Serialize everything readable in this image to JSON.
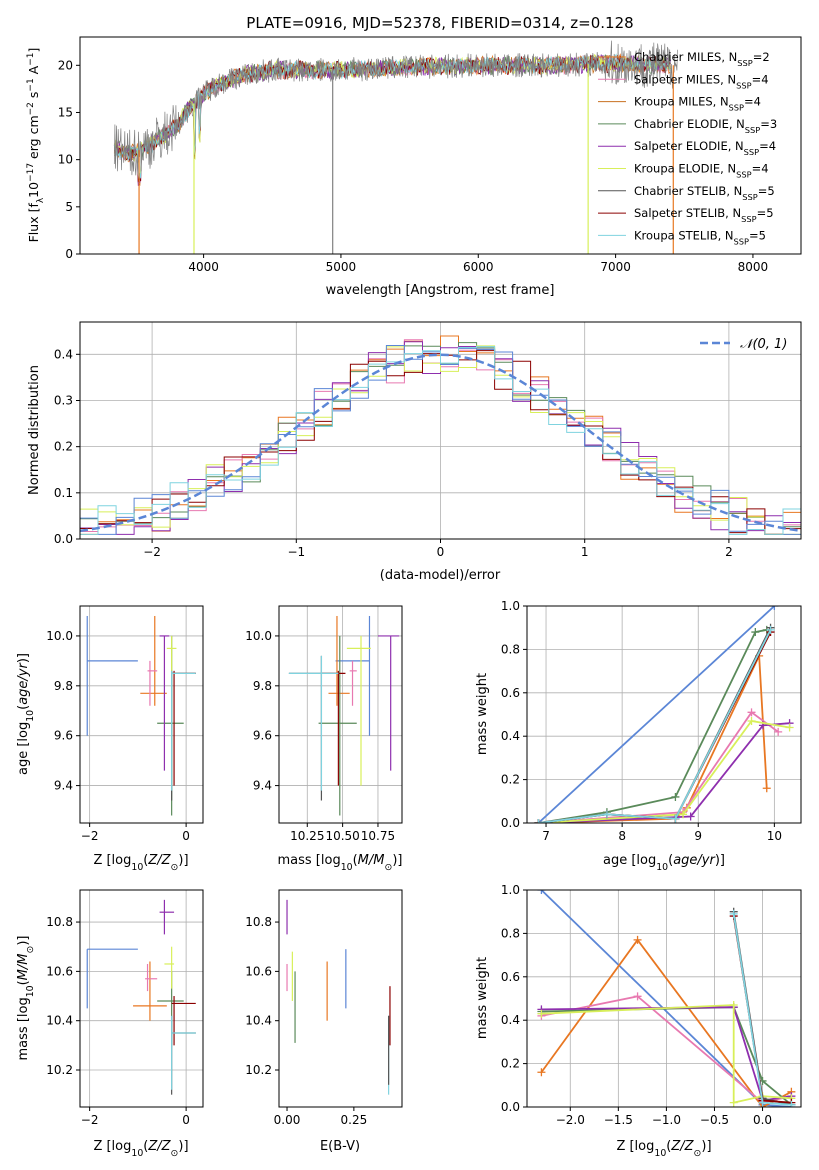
{
  "title": "PLATE=0916, MJD=52378, FIBERID=0314, z=0.128",
  "colors": {
    "blue": "#5b86d6",
    "orange": "#e87722",
    "green": "#5a8a5a",
    "purple": "#8e2fae",
    "yellow": "#d8ef5a",
    "grey": "#7f7f7f",
    "red": "#8b0000",
    "cyan": "#7fd3df",
    "pink": "#e879b0"
  },
  "chart_data": [
    {
      "id": "spectrum",
      "type": "line",
      "xlabel": "wavelength [Angstrom, rest frame]",
      "ylabel": "Flux [f",
      "xlim": [
        3100,
        8350
      ],
      "ylim": [
        0,
        23
      ],
      "xticks": [
        "4000",
        "5000",
        "6000",
        "7000",
        "8000"
      ],
      "yticks": [
        "0",
        "5",
        "10",
        "15",
        "20"
      ],
      "legend_position": "top-right",
      "legend": [
        {
          "name": "Chabrier MILES, N",
          "n": "2",
          "color": "#e87722"
        },
        {
          "name": "Salpeter MILES, N",
          "n": "4",
          "color": "#e879b0"
        },
        {
          "name": "Kroupa MILES, N",
          "n": "4",
          "color": "#c87020"
        },
        {
          "name": "Chabrier ELODIE, N",
          "n": "3",
          "color": "#5a8a5a"
        },
        {
          "name": "Salpeter ELODIE, N",
          "n": "4",
          "color": "#8e2fae"
        },
        {
          "name": "Kroupa ELODIE, N",
          "n": "4",
          "color": "#d8ef5a"
        },
        {
          "name": "Chabrier STELIB, N",
          "n": "5",
          "color": "#555555"
        },
        {
          "name": "Salpeter STELIB, N",
          "n": "5",
          "color": "#8b0000"
        },
        {
          "name": "Kroupa STELIB, N",
          "n": "5",
          "color": "#7fd3df"
        }
      ],
      "data_envelope": {
        "x": [
          3350,
          3450,
          3500,
          3600,
          3700,
          3800,
          3900,
          4000,
          4100,
          4300,
          4500,
          5000,
          5500,
          6000,
          6500,
          7000,
          7400
        ],
        "y": [
          11.2,
          10.6,
          10.8,
          11.5,
          12.5,
          13.5,
          15.5,
          17.0,
          18.0,
          19.0,
          19.5,
          19.5,
          19.8,
          20.0,
          20.0,
          20.2,
          20.0
        ]
      }
    },
    {
      "id": "residuals",
      "type": "line",
      "xlabel": "(data-model)/error",
      "ylabel": "Normed distribution",
      "xlim": [
        -2.5,
        2.5
      ],
      "ylim": [
        0,
        0.47
      ],
      "xticks": [
        "−2",
        "−1",
        "0",
        "1",
        "2"
      ],
      "yticks": [
        "0.0",
        "0.1",
        "0.2",
        "0.3",
        "0.4"
      ],
      "legend": "𝒩(0, 1)",
      "legend_position": "top-right",
      "grid": true
    },
    {
      "id": "age-vs-Z",
      "type": "scatter",
      "xlabel": "Z [log",
      "ylabel": "age  [log",
      "xlim": [
        -2.2,
        0.35
      ],
      "ylim": [
        9.25,
        10.12
      ],
      "xticks": [
        "−2",
        "0"
      ],
      "yticks": [
        "9.4",
        "9.6",
        "9.8",
        "10.0"
      ],
      "grid": true,
      "points": [
        {
          "color": "#5b86d6",
          "x": -2.05,
          "y": 9.9,
          "xlo": -2.05,
          "xhi": -1.0,
          "ylo": 9.6,
          "yhi": 10.08
        },
        {
          "color": "#e87722",
          "x": -0.65,
          "y": 9.77,
          "xlo": -0.95,
          "xhi": -0.4,
          "ylo": 9.72,
          "yhi": 10.08
        },
        {
          "color": "#e879b0",
          "x": -0.75,
          "y": 9.86,
          "xlo": -0.8,
          "xhi": -0.6,
          "ylo": 9.72,
          "yhi": 9.9
        },
        {
          "color": "#5a8a5a",
          "x": -0.3,
          "y": 9.65,
          "xlo": -0.6,
          "xhi": -0.05,
          "ylo": 9.28,
          "yhi": 10.0
        },
        {
          "color": "#8e2fae",
          "x": -0.45,
          "y": 10.0,
          "xlo": -0.55,
          "xhi": -0.35,
          "ylo": 9.46,
          "yhi": 10.0
        },
        {
          "color": "#d8ef5a",
          "x": -0.3,
          "y": 9.95,
          "xlo": -0.4,
          "xhi": -0.2,
          "ylo": 9.4,
          "yhi": 10.0
        },
        {
          "color": "#555555",
          "x": -0.3,
          "y": 9.85,
          "xlo": -0.3,
          "xhi": 0.2,
          "ylo": 9.34,
          "yhi": 9.86
        },
        {
          "color": "#8b0000",
          "x": -0.25,
          "y": 9.85,
          "xlo": -0.3,
          "xhi": 0.2,
          "ylo": 9.4,
          "yhi": 9.86
        },
        {
          "color": "#7fd3df",
          "x": -0.3,
          "y": 9.85,
          "xlo": -0.3,
          "xhi": 0.2,
          "ylo": 9.38,
          "yhi": 9.86
        }
      ]
    },
    {
      "id": "age-vs-mass",
      "type": "scatter",
      "xlabel": "mass [log",
      "ylabel": "",
      "xlim": [
        10.05,
        10.92
      ],
      "ylim": [
        9.25,
        10.12
      ],
      "xticks": [
        "10.25",
        "10.50",
        "10.75"
      ],
      "yticks": [
        "9.4",
        "9.6",
        "9.8",
        "10.0"
      ],
      "grid": true,
      "points": [
        {
          "color": "#5b86d6",
          "x": 10.69,
          "y": 9.9,
          "xlo": 10.45,
          "xhi": 10.69,
          "ylo": 9.6,
          "yhi": 10.08
        },
        {
          "color": "#e87722",
          "x": 10.46,
          "y": 9.77,
          "xlo": 10.4,
          "xhi": 10.55,
          "ylo": 9.72,
          "yhi": 10.08
        },
        {
          "color": "#e879b0",
          "x": 10.57,
          "y": 9.86,
          "xlo": 10.55,
          "xhi": 10.6,
          "ylo": 9.72,
          "yhi": 9.9
        },
        {
          "color": "#5a8a5a",
          "x": 10.48,
          "y": 9.65,
          "xlo": 10.33,
          "xhi": 10.6,
          "ylo": 9.28,
          "yhi": 10.0
        },
        {
          "color": "#8e2fae",
          "x": 10.84,
          "y": 10.0,
          "xlo": 10.75,
          "xhi": 10.9,
          "ylo": 9.46,
          "yhi": 10.0
        },
        {
          "color": "#d8ef5a",
          "x": 10.63,
          "y": 9.95,
          "xlo": 10.53,
          "xhi": 10.7,
          "ylo": 9.4,
          "yhi": 10.0
        },
        {
          "color": "#555555",
          "x": 10.35,
          "y": 9.85,
          "xlo": 10.12,
          "xhi": 10.47,
          "ylo": 9.34,
          "yhi": 9.92
        },
        {
          "color": "#8b0000",
          "x": 10.47,
          "y": 9.85,
          "xlo": 10.35,
          "xhi": 10.52,
          "ylo": 9.4,
          "yhi": 9.86
        },
        {
          "color": "#7fd3df",
          "x": 10.35,
          "y": 9.85,
          "xlo": 10.12,
          "xhi": 10.47,
          "ylo": 9.38,
          "yhi": 9.92
        }
      ]
    },
    {
      "id": "weight-vs-age",
      "type": "line",
      "xlabel": "age  [log",
      "ylabel": "mass weight",
      "xlim": [
        6.75,
        10.35
      ],
      "ylim": [
        0,
        1
      ],
      "xticks": [
        "7",
        "8",
        "9",
        "10"
      ],
      "yticks": [
        "0.0",
        "0.2",
        "0.4",
        "0.6",
        "0.8",
        "1.0"
      ],
      "grid": true,
      "series": [
        {
          "color": "#5b86d6",
          "x": [
            6.9,
            10.0
          ],
          "y": [
            0.0,
            1.0
          ]
        },
        {
          "color": "#e87722",
          "x": [
            6.9,
            8.7,
            8.85,
            9.8,
            9.9
          ],
          "y": [
            0.0,
            0.02,
            0.07,
            0.77,
            0.16
          ]
        },
        {
          "color": "#e879b0",
          "x": [
            6.9,
            8.8,
            9.7,
            10.05
          ],
          "y": [
            0.0,
            0.05,
            0.51,
            0.42
          ]
        },
        {
          "color": "#5a8a5a",
          "x": [
            6.9,
            7.8,
            8.7,
            9.75,
            9.9
          ],
          "y": [
            0.0,
            0.05,
            0.12,
            0.88,
            0.89
          ]
        },
        {
          "color": "#8e2fae",
          "x": [
            6.9,
            8.9,
            9.85,
            10.2
          ],
          "y": [
            0.0,
            0.03,
            0.45,
            0.46
          ]
        },
        {
          "color": "#d8ef5a",
          "x": [
            6.9,
            8.8,
            9.7,
            10.2
          ],
          "y": [
            0.0,
            0.04,
            0.47,
            0.44
          ]
        },
        {
          "color": "#555555",
          "x": [
            6.9,
            7.8,
            8.7,
            9.95
          ],
          "y": [
            0.0,
            0.04,
            0.02,
            0.9
          ]
        },
        {
          "color": "#8b0000",
          "x": [
            6.9,
            7.8,
            8.7,
            9.95
          ],
          "y": [
            0.0,
            0.04,
            0.02,
            0.88
          ]
        },
        {
          "color": "#7fd3df",
          "x": [
            6.9,
            7.8,
            8.7,
            9.95
          ],
          "y": [
            0.0,
            0.04,
            0.02,
            0.89
          ]
        }
      ]
    },
    {
      "id": "mass-vs-Z",
      "type": "scatter",
      "xlabel": "Z [log",
      "ylabel": "mass [log",
      "xlim": [
        -2.2,
        0.35
      ],
      "ylim": [
        10.05,
        10.93
      ],
      "xticks": [
        "−2",
        "0"
      ],
      "yticks": [
        "10.2",
        "10.4",
        "10.6",
        "10.8"
      ],
      "grid": true,
      "points": [
        {
          "color": "#5b86d6",
          "x": -2.05,
          "y": 10.69,
          "xlo": -2.05,
          "xhi": -1.0,
          "ylo": 10.45,
          "yhi": 10.69
        },
        {
          "color": "#e87722",
          "x": -0.75,
          "y": 10.46,
          "xlo": -1.1,
          "xhi": -0.4,
          "ylo": 10.4,
          "yhi": 10.64
        },
        {
          "color": "#e879b0",
          "x": -0.8,
          "y": 10.57,
          "xlo": -0.85,
          "xhi": -0.6,
          "ylo": 10.52,
          "yhi": 10.63
        },
        {
          "color": "#5a8a5a",
          "x": -0.3,
          "y": 10.48,
          "xlo": -0.6,
          "xhi": -0.05,
          "ylo": 10.3,
          "yhi": 10.6
        },
        {
          "color": "#8e2fae",
          "x": -0.45,
          "y": 10.84,
          "xlo": -0.55,
          "xhi": -0.25,
          "ylo": 10.75,
          "yhi": 10.89
        },
        {
          "color": "#d8ef5a",
          "x": -0.3,
          "y": 10.63,
          "xlo": -0.45,
          "xhi": -0.25,
          "ylo": 10.53,
          "yhi": 10.7
        },
        {
          "color": "#555555",
          "x": -0.3,
          "y": 10.35,
          "xlo": -0.3,
          "xhi": 0.2,
          "ylo": 10.1,
          "yhi": 10.42
        },
        {
          "color": "#8b0000",
          "x": -0.25,
          "y": 10.47,
          "xlo": -0.3,
          "xhi": 0.2,
          "ylo": 10.3,
          "yhi": 10.5
        },
        {
          "color": "#7fd3df",
          "x": -0.3,
          "y": 10.35,
          "xlo": -0.3,
          "xhi": 0.2,
          "ylo": 10.12,
          "yhi": 10.42
        }
      ]
    },
    {
      "id": "mass-vs-ebv",
      "type": "scatter",
      "xlabel": "E(B-V)",
      "ylabel": "",
      "xlim": [
        -0.03,
        0.43
      ],
      "ylim": [
        10.05,
        10.93
      ],
      "xticks": [
        "0.00",
        "0.25"
      ],
      "yticks": [
        "10.2",
        "10.4",
        "10.6",
        "10.8"
      ],
      "points": [
        {
          "color": "#8e2fae",
          "x": 0.0,
          "ylo": 10.75,
          "yhi": 10.89
        },
        {
          "color": "#e879b0",
          "x": 0.0,
          "ylo": 10.52,
          "yhi": 10.63
        },
        {
          "color": "#d8ef5a",
          "x": 0.02,
          "ylo": 10.48,
          "yhi": 10.68
        },
        {
          "color": "#5a8a5a",
          "x": 0.03,
          "ylo": 10.31,
          "yhi": 10.6
        },
        {
          "color": "#e87722",
          "x": 0.15,
          "ylo": 10.4,
          "yhi": 10.64
        },
        {
          "color": "#5b86d6",
          "x": 0.22,
          "ylo": 10.45,
          "yhi": 10.69
        },
        {
          "color": "#7fd3df",
          "x": 0.38,
          "ylo": 10.1,
          "yhi": 10.42
        },
        {
          "color": "#8b0000",
          "x": 0.385,
          "ylo": 10.3,
          "yhi": 10.54
        },
        {
          "color": "#555555",
          "x": 0.38,
          "ylo": 10.14,
          "yhi": 10.42
        }
      ]
    },
    {
      "id": "weight-vs-Z",
      "type": "line",
      "xlabel": "Z [log",
      "ylabel": "mass weight",
      "xlim": [
        -2.45,
        0.4
      ],
      "ylim": [
        0,
        1
      ],
      "xticks": [
        "−2.0",
        "−1.5",
        "−1.0",
        "−0.5",
        "0.0"
      ],
      "yticks": [
        "0.0",
        "0.2",
        "0.4",
        "0.6",
        "0.8",
        "1.0"
      ],
      "grid": true,
      "series": [
        {
          "color": "#5b86d6",
          "x": [
            -2.3,
            0.0,
            0.3
          ],
          "y": [
            1.0,
            0.01,
            0.0
          ]
        },
        {
          "color": "#e87722",
          "x": [
            -2.3,
            -1.3,
            0.0,
            0.3
          ],
          "y": [
            0.16,
            0.77,
            0.0,
            0.07
          ]
        },
        {
          "color": "#e879b0",
          "x": [
            -2.3,
            -1.3,
            0.0,
            0.3
          ],
          "y": [
            0.42,
            0.51,
            0.02,
            0.05
          ]
        },
        {
          "color": "#5a8a5a",
          "x": [
            -2.3,
            -0.3,
            0.0,
            0.3
          ],
          "y": [
            0.44,
            0.46,
            0.12,
            0.01
          ]
        },
        {
          "color": "#8e2fae",
          "x": [
            -2.3,
            -0.3,
            0.0,
            0.3
          ],
          "y": [
            0.45,
            0.46,
            0.03,
            0.05
          ]
        },
        {
          "color": "#d8ef5a",
          "x": [
            -2.3,
            -0.3,
            -0.3,
            0.0,
            0.3
          ],
          "y": [
            0.43,
            0.47,
            0.02,
            0.05,
            0.04
          ]
        },
        {
          "color": "#555555",
          "x": [
            -0.3,
            0.0,
            0.3
          ],
          "y": [
            0.9,
            0.04,
            0.01
          ]
        },
        {
          "color": "#8b0000",
          "x": [
            -0.3,
            0.0,
            0.3
          ],
          "y": [
            0.88,
            0.03,
            0.02
          ]
        },
        {
          "color": "#7fd3df",
          "x": [
            -0.3,
            0.0,
            0.3
          ],
          "y": [
            0.89,
            0.02,
            0.01
          ]
        }
      ]
    }
  ]
}
